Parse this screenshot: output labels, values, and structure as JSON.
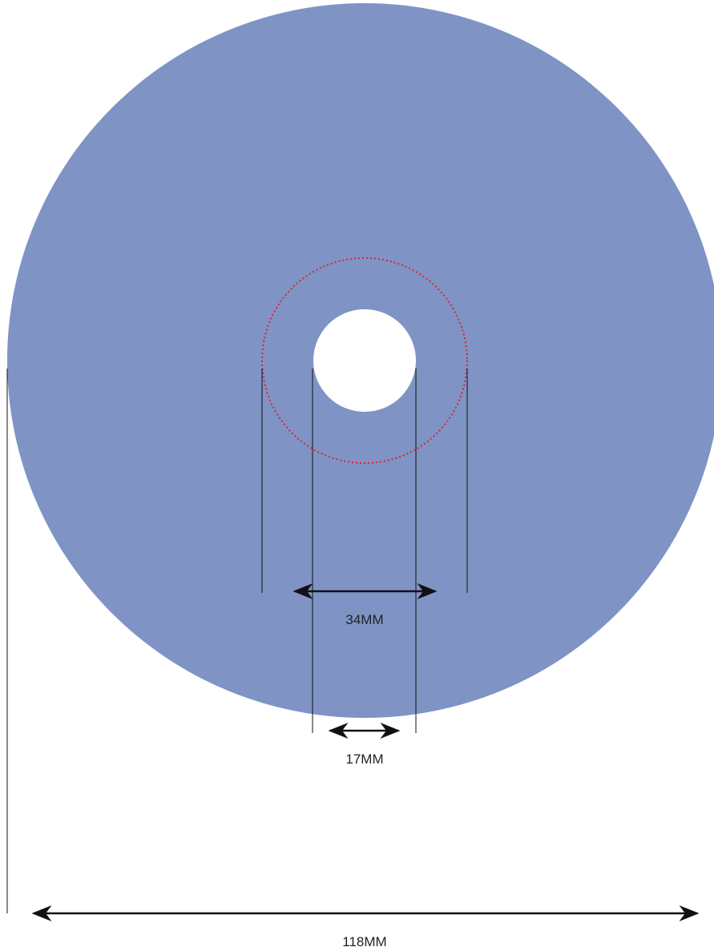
{
  "disc": {
    "fill_color": "#7f93c5",
    "hole_color": "#ffffff",
    "guide_circle_color": "#d9252a",
    "line_color": "#111111"
  },
  "dimensions": {
    "hole_diameter": {
      "label": "17MM",
      "value_mm": 17
    },
    "hub_diameter": {
      "label": "34MM",
      "value_mm": 34
    },
    "outer_diameter": {
      "label": "118MM",
      "value_mm": 118
    }
  }
}
